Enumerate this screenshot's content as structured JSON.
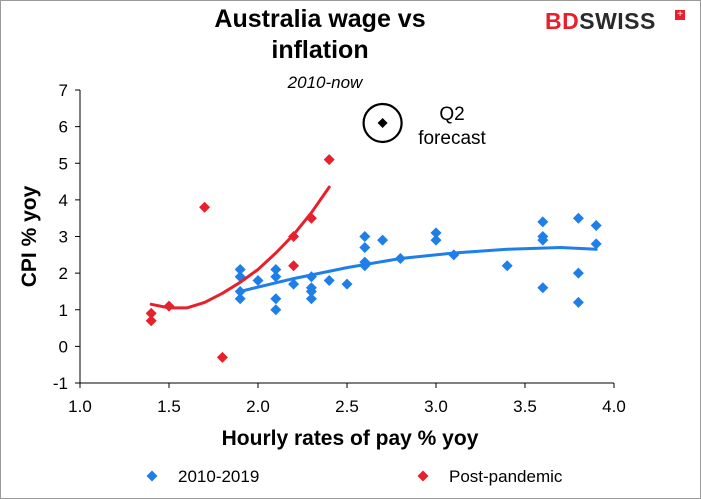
{
  "header": {
    "title_line1": "Australia wage vs",
    "title_line2": "inflation",
    "subtitle": "2010-now",
    "logo_bd": "BD",
    "logo_swiss": "SWISS",
    "logo_mark": "+"
  },
  "annotation": {
    "line1": "Q2",
    "line2": "forecast"
  },
  "colors": {
    "blue": "#1f7fe8",
    "red": "#e8202b",
    "forecast": "#000000"
  },
  "chart_data": {
    "type": "scatter",
    "xlabel": "Hourly rates of pay % yoy",
    "ylabel": "CPI % yoy",
    "xlim": [
      1.0,
      4.0
    ],
    "ylim": [
      -1,
      7
    ],
    "x_ticks": [
      "1.0",
      "1.5",
      "2.0",
      "2.5",
      "3.0",
      "3.5",
      "4.0"
    ],
    "y_ticks": [
      "-1",
      "0",
      "1",
      "2",
      "3",
      "4",
      "5",
      "6",
      "7"
    ],
    "legend_position": "bottom",
    "series": [
      {
        "name": "2010-2019",
        "color": "#1f7fe8",
        "marker": "diamond",
        "points": [
          [
            1.9,
            2.1
          ],
          [
            1.9,
            1.9
          ],
          [
            1.9,
            1.5
          ],
          [
            1.9,
            1.3
          ],
          [
            2.0,
            1.8
          ],
          [
            2.1,
            2.1
          ],
          [
            2.1,
            1.9
          ],
          [
            2.1,
            1.3
          ],
          [
            2.1,
            1.0
          ],
          [
            2.2,
            1.7
          ],
          [
            2.3,
            1.9
          ],
          [
            2.3,
            1.6
          ],
          [
            2.3,
            1.5
          ],
          [
            2.3,
            1.3
          ],
          [
            2.4,
            1.8
          ],
          [
            2.5,
            1.7
          ],
          [
            2.6,
            3.0
          ],
          [
            2.6,
            2.7
          ],
          [
            2.6,
            2.3
          ],
          [
            2.6,
            2.2
          ],
          [
            2.7,
            2.9
          ],
          [
            2.8,
            2.4
          ],
          [
            3.0,
            3.1
          ],
          [
            3.0,
            2.9
          ],
          [
            3.1,
            2.5
          ],
          [
            3.4,
            2.2
          ],
          [
            3.6,
            3.4
          ],
          [
            3.6,
            3.0
          ],
          [
            3.6,
            2.9
          ],
          [
            3.6,
            1.6
          ],
          [
            3.8,
            3.5
          ],
          [
            3.8,
            2.0
          ],
          [
            3.8,
            1.2
          ],
          [
            3.9,
            3.3
          ],
          [
            3.9,
            2.8
          ]
        ],
        "trend": [
          [
            1.9,
            1.5
          ],
          [
            2.2,
            1.85
          ],
          [
            2.5,
            2.15
          ],
          [
            2.8,
            2.4
          ],
          [
            3.1,
            2.55
          ],
          [
            3.4,
            2.65
          ],
          [
            3.7,
            2.7
          ],
          [
            3.9,
            2.65
          ]
        ]
      },
      {
        "name": "Post-pandemic",
        "color": "#e8202b",
        "marker": "diamond",
        "points": [
          [
            1.4,
            0.9
          ],
          [
            1.4,
            0.7
          ],
          [
            1.5,
            1.1
          ],
          [
            1.7,
            3.8
          ],
          [
            1.8,
            -0.3
          ],
          [
            2.2,
            3.0
          ],
          [
            2.2,
            2.2
          ],
          [
            2.3,
            3.5
          ],
          [
            2.4,
            5.1
          ]
        ],
        "trend": [
          [
            1.4,
            1.15
          ],
          [
            1.5,
            1.05
          ],
          [
            1.6,
            1.05
          ],
          [
            1.7,
            1.2
          ],
          [
            1.8,
            1.45
          ],
          [
            1.9,
            1.75
          ],
          [
            2.0,
            2.1
          ],
          [
            2.1,
            2.55
          ],
          [
            2.2,
            3.05
          ],
          [
            2.3,
            3.65
          ],
          [
            2.4,
            4.35
          ]
        ]
      },
      {
        "name": "Q2 forecast",
        "color": "#000000",
        "marker": "diamond-circled",
        "points": [
          [
            2.7,
            6.1
          ]
        ]
      }
    ]
  }
}
